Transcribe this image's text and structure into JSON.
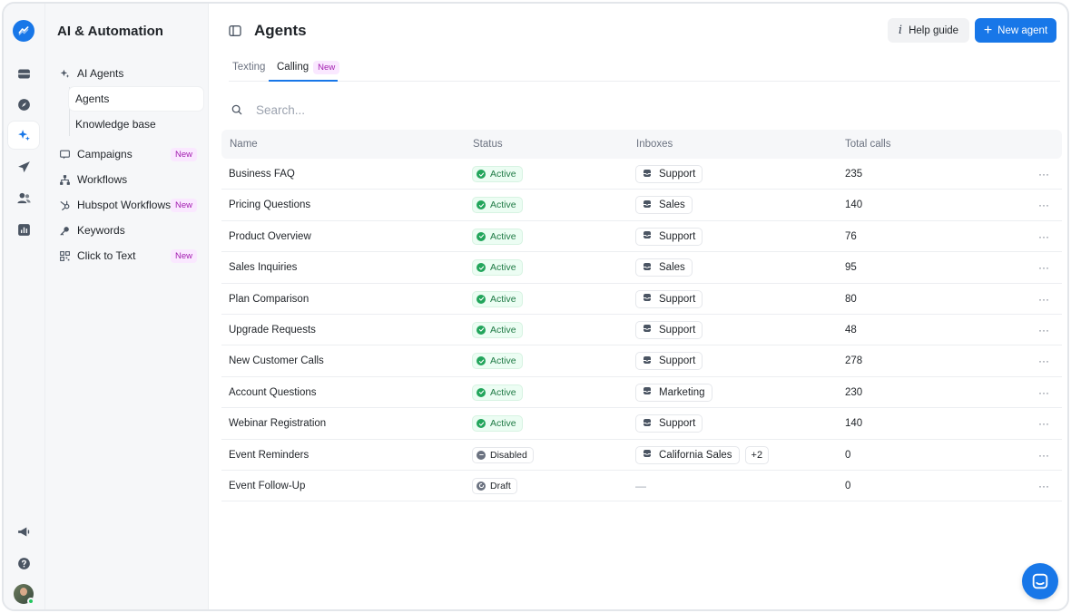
{
  "sidebar": {
    "title": "AI & Automation",
    "items": [
      {
        "label": "AI Agents",
        "icon": "sparkle-icon"
      },
      {
        "label": "Agents"
      },
      {
        "label": "Knowledge base"
      },
      {
        "label": "Campaigns",
        "icon": "campaign-icon",
        "badge": "New"
      },
      {
        "label": "Workflows",
        "icon": "workflow-icon"
      },
      {
        "label": "Hubspot Workflows",
        "icon": "hubspot-icon",
        "badge": "New"
      },
      {
        "label": "Keywords",
        "icon": "key-icon"
      },
      {
        "label": "Click to Text",
        "icon": "qr-icon",
        "badge": "New"
      }
    ]
  },
  "header": {
    "title": "Agents",
    "help_label": "Help guide",
    "new_label": "New agent"
  },
  "tabs": [
    {
      "label": "Texting"
    },
    {
      "label": "Calling",
      "badge": "New",
      "active": true
    }
  ],
  "search": {
    "placeholder": "Search..."
  },
  "table": {
    "columns": [
      "Name",
      "Status",
      "Inboxes",
      "Total calls"
    ],
    "rows": [
      {
        "name": "Business FAQ",
        "status": "Active",
        "inbox": "Support",
        "total": "235"
      },
      {
        "name": "Pricing Questions",
        "status": "Active",
        "inbox": "Sales",
        "total": "140"
      },
      {
        "name": "Product Overview",
        "status": "Active",
        "inbox": "Support",
        "total": "76"
      },
      {
        "name": "Sales Inquiries",
        "status": "Active",
        "inbox": "Sales",
        "total": "95"
      },
      {
        "name": "Plan Comparison",
        "status": "Active",
        "inbox": "Support",
        "total": "80"
      },
      {
        "name": "Upgrade Requests",
        "status": "Active",
        "inbox": "Support",
        "total": "48"
      },
      {
        "name": "New Customer Calls",
        "status": "Active",
        "inbox": "Support",
        "total": "278"
      },
      {
        "name": "Account Questions",
        "status": "Active",
        "inbox": "Marketing",
        "total": "230"
      },
      {
        "name": "Webinar Registration",
        "status": "Active",
        "inbox": "Support",
        "total": "140"
      },
      {
        "name": "Event Reminders",
        "status": "Disabled",
        "inbox": "California Sales",
        "extra": "+2",
        "total": "0"
      },
      {
        "name": "Event Follow-Up",
        "status": "Draft",
        "inbox": "—",
        "total": "0"
      }
    ],
    "more_label": "···"
  },
  "colors": {
    "accent": "#1877e8",
    "active_green": "#22a55b",
    "new_badge": "#a21caf"
  }
}
